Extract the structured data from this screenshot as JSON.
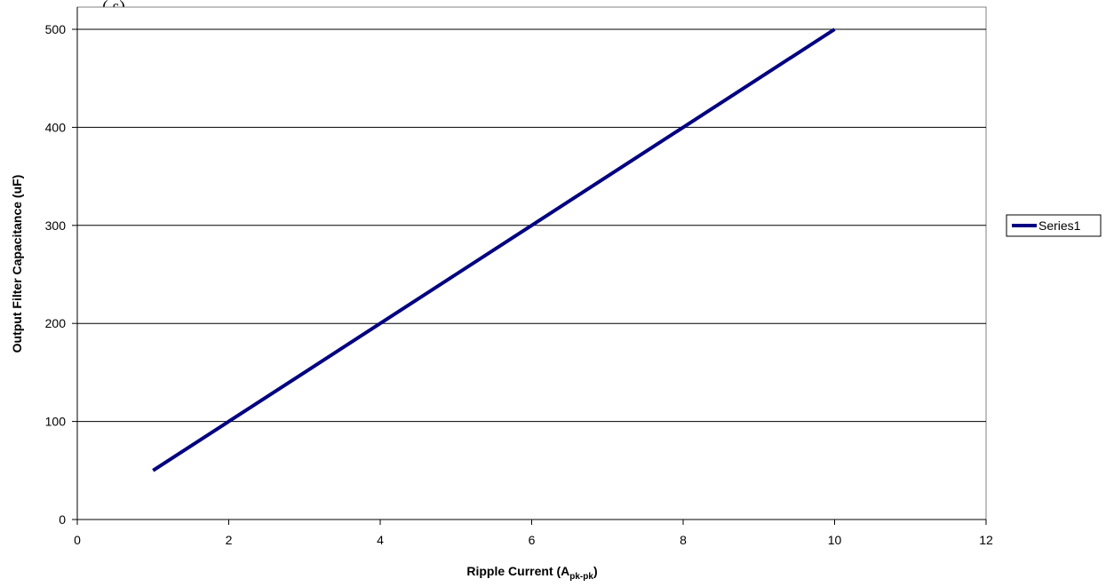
{
  "chart_data": {
    "type": "line",
    "title": "",
    "top_fragment": "(   s)",
    "xlabel": "Ripple Current (A",
    "xlabel_subscript": "pk-pk",
    "xlabel_close": ")",
    "ylabel": "Output Filter Capacitance (uF)",
    "xlim": [
      0,
      12
    ],
    "ylim": [
      0,
      500
    ],
    "x_ticks": [
      "0",
      "2",
      "4",
      "6",
      "8",
      "10",
      "12"
    ],
    "y_ticks": [
      "0",
      "100",
      "200",
      "300",
      "400",
      "500"
    ],
    "grid": "horizontal",
    "legend_position": "right",
    "series": [
      {
        "name": "Series1",
        "color": "#000080",
        "x": [
          1,
          2,
          3,
          4,
          5,
          6,
          7,
          8,
          9,
          10
        ],
        "y": [
          50,
          100,
          150,
          200,
          250,
          300,
          350,
          400,
          450,
          500
        ]
      }
    ]
  }
}
